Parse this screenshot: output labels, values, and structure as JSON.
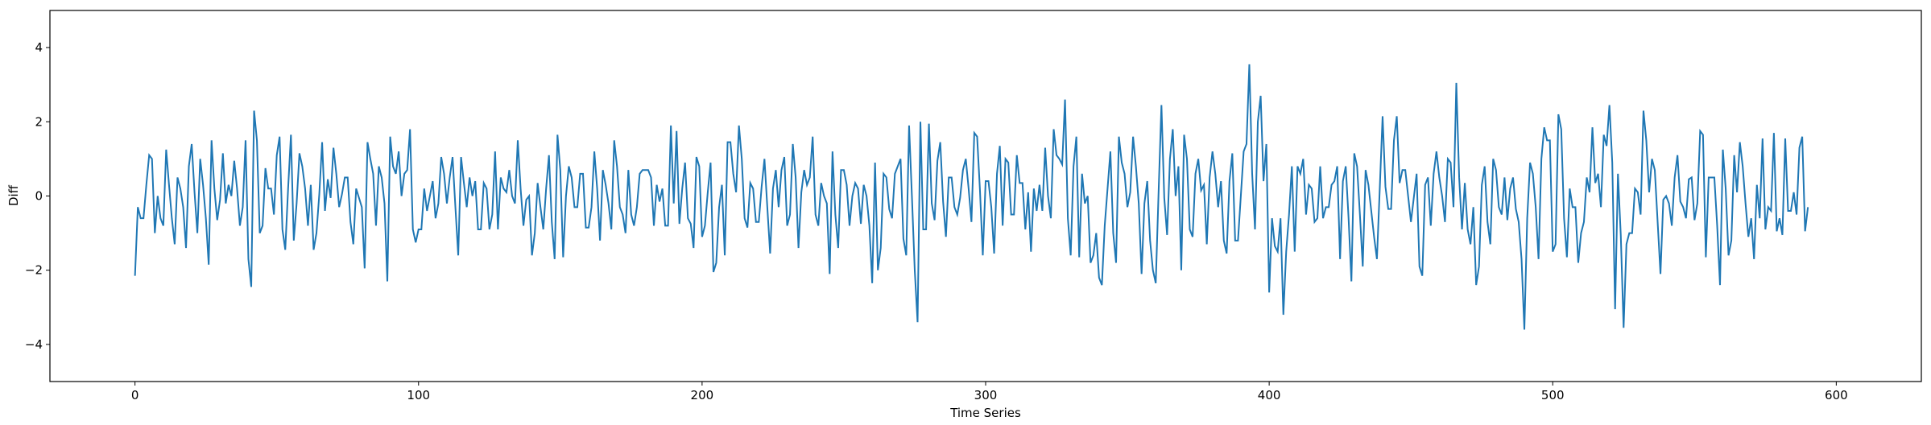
{
  "chart_data": {
    "type": "line",
    "title": "",
    "xlabel": "Time Series",
    "ylabel": "Diff",
    "xlim": [
      -30,
      630
    ],
    "ylim": [
      -5,
      5
    ],
    "xticks": [
      0,
      100,
      200,
      300,
      400,
      500,
      600
    ],
    "yticks": [
      -4,
      -2,
      0,
      2,
      4
    ],
    "grid": false,
    "legend": "none",
    "line_color": "#1f77b4",
    "series": [
      {
        "values": [
          -2.15,
          -0.3,
          -0.6,
          -0.6,
          0.3,
          1.1,
          1.0,
          -1.0,
          0.0,
          -0.6,
          -0.8,
          1.25,
          0.3,
          -0.6,
          -1.3,
          0.5,
          0.2,
          -0.3,
          -1.4,
          0.8,
          1.4,
          0.1,
          -1.0,
          1.0,
          0.3,
          -0.6,
          -1.85,
          1.5,
          0.2,
          -0.65,
          -0.1,
          1.15,
          -0.2,
          0.3,
          0.0,
          0.95,
          0.2,
          -0.8,
          -0.3,
          1.5,
          -1.7,
          -2.45,
          2.3,
          1.5,
          -1.0,
          -0.8,
          0.75,
          0.2,
          0.2,
          -0.5,
          1.1,
          1.6,
          -0.9,
          -1.45,
          0.2,
          1.65,
          -1.2,
          -0.2,
          1.15,
          0.8,
          0.2,
          -0.8,
          0.3,
          -1.45,
          -1.0,
          0.05,
          1.45,
          -0.4,
          0.45,
          -0.05,
          1.3,
          0.6,
          -0.3,
          0.05,
          0.5,
          0.5,
          -0.7,
          -1.3,
          0.2,
          -0.05,
          -0.3,
          -1.95,
          1.45,
          1.0,
          0.6,
          -0.8,
          0.8,
          0.5,
          -0.2,
          -2.3,
          1.6,
          0.8,
          0.6,
          1.2,
          0.0,
          0.6,
          0.7,
          1.8,
          -0.9,
          -1.25,
          -0.9,
          -0.9,
          0.2,
          -0.4,
          0.0,
          0.4,
          -0.6,
          -0.2,
          1.05,
          0.6,
          -0.2,
          0.5,
          1.05,
          -0.3,
          -1.6,
          1.05,
          0.35,
          -0.3,
          0.5,
          0.0,
          0.4,
          -0.9,
          -0.9,
          0.35,
          0.2,
          -0.9,
          -0.5,
          1.2,
          -0.9,
          0.5,
          0.2,
          0.1,
          0.7,
          0.0,
          -0.2,
          1.5,
          0.2,
          -0.8,
          -0.1,
          0.0,
          -1.6,
          -1.0,
          0.35,
          -0.3,
          -0.9,
          0.2,
          1.1,
          -0.7,
          -1.7,
          1.65,
          0.7,
          -1.65,
          0.0,
          0.8,
          0.5,
          -0.3,
          -0.3,
          0.6,
          0.6,
          -0.85,
          -0.85,
          -0.3,
          1.2,
          0.2,
          -1.2,
          0.7,
          0.3,
          -0.2,
          -0.9,
          1.5,
          0.8,
          -0.3,
          -0.5,
          -1.0,
          0.7,
          -0.5,
          -0.8,
          -0.3,
          0.6,
          0.7,
          0.7,
          0.7,
          0.5,
          -0.8,
          0.3,
          -0.15,
          0.2,
          -0.8,
          -0.8,
          1.9,
          -0.2,
          1.75,
          -0.75,
          0.2,
          0.9,
          -0.6,
          -0.75,
          -1.4,
          1.05,
          0.8,
          -1.1,
          -0.8,
          0.1,
          0.9,
          -2.05,
          -1.8,
          -0.3,
          0.3,
          -1.6,
          1.45,
          1.45,
          0.6,
          0.1,
          1.9,
          1.0,
          -0.6,
          -0.85,
          0.35,
          0.2,
          -0.7,
          -0.7,
          0.25,
          1.0,
          -0.3,
          -1.55,
          0.2,
          0.7,
          -0.3,
          0.7,
          1.05,
          -0.8,
          -0.5,
          1.4,
          0.5,
          -1.4,
          0.1,
          0.7,
          0.3,
          0.5,
          1.6,
          -0.5,
          -0.8,
          0.35,
          0.0,
          -0.2,
          -2.1,
          1.2,
          -0.5,
          -1.4,
          0.7,
          0.7,
          0.3,
          -0.8,
          0.0,
          0.35,
          0.2,
          -0.75,
          0.3,
          0.0,
          -0.8,
          -2.35,
          0.9,
          -2.0,
          -1.4,
          0.6,
          0.5,
          -0.35,
          -0.6,
          0.6,
          0.8,
          1.0,
          -1.15,
          -1.6,
          1.9,
          0.0,
          -2.0,
          -3.4,
          2.0,
          -0.9,
          -0.9,
          1.95,
          -0.2,
          -0.65,
          0.95,
          1.45,
          -0.15,
          -1.1,
          0.5,
          0.5,
          -0.3,
          -0.5,
          -0.05,
          0.7,
          1.0,
          0.2,
          -0.7,
          1.7,
          1.6,
          0.15,
          -1.6,
          0.4,
          0.4,
          -0.3,
          -1.55,
          0.6,
          1.35,
          -0.8,
          1.0,
          0.9,
          -0.5,
          -0.5,
          1.1,
          0.35,
          0.35,
          -0.9,
          0.1,
          -1.5,
          0.2,
          -0.4,
          0.3,
          -0.4,
          1.3,
          0.0,
          -0.6,
          1.8,
          1.1,
          1.0,
          0.85,
          2.6,
          -0.6,
          -1.6,
          0.8,
          1.6,
          -1.65,
          0.6,
          -0.2,
          0.0,
          -1.8,
          -1.6,
          -1.0,
          -2.2,
          -2.4,
          -0.8,
          0.2,
          1.2,
          -1.0,
          -1.8,
          1.6,
          0.9,
          0.6,
          -0.3,
          0.1,
          1.6,
          0.8,
          -0.2,
          -2.1,
          -0.2,
          0.4,
          -1.2,
          -2.0,
          -2.35,
          0.1,
          2.45,
          -0.05,
          -1.05,
          1.0,
          1.8,
          0.0,
          0.8,
          -2.0,
          1.65,
          1.0,
          -0.9,
          -1.1,
          0.6,
          1.0,
          0.15,
          0.3,
          -1.3,
          0.5,
          1.2,
          0.6,
          -0.3,
          0.4,
          -1.2,
          -1.55,
          0.4,
          1.15,
          -1.2,
          -1.2,
          0.0,
          1.2,
          1.4,
          3.55,
          0.6,
          -0.9,
          2.0,
          2.7,
          0.4,
          1.4,
          -2.6,
          -0.6,
          -1.35,
          -1.5,
          -0.6,
          -3.2,
          -1.5,
          -0.5,
          0.8,
          -1.5,
          0.8,
          0.6,
          1.0,
          -0.5,
          0.3,
          0.2,
          -0.7,
          -0.6,
          0.8,
          -0.6,
          -0.3,
          -0.3,
          0.3,
          0.4,
          0.8,
          -1.7,
          0.4,
          0.8,
          -0.6,
          -2.3,
          1.15,
          0.8,
          -0.5,
          -1.9,
          0.7,
          0.3,
          -0.4,
          -1.1,
          -1.7,
          0.2,
          2.15,
          0.25,
          -0.35,
          -0.35,
          1.5,
          2.15,
          0.35,
          0.7,
          0.7,
          0.0,
          -0.7,
          -0.05,
          0.6,
          -1.9,
          -2.15,
          0.3,
          0.5,
          -0.8,
          0.6,
          1.2,
          0.5,
          0.0,
          -0.7,
          1.0,
          0.9,
          -0.3,
          3.05,
          0.5,
          -0.9,
          0.35,
          -0.9,
          -1.3,
          -0.3,
          -2.4,
          -1.9,
          0.3,
          0.8,
          -0.7,
          -1.3,
          1.0,
          0.7,
          -0.3,
          -0.5,
          0.5,
          -0.65,
          0.2,
          0.5,
          -0.35,
          -0.7,
          -1.7,
          -3.6,
          -0.6,
          0.9,
          0.6,
          -0.3,
          -1.7,
          1.0,
          1.85,
          1.5,
          1.5,
          -1.5,
          -1.3,
          2.2,
          1.8,
          -0.6,
          -1.65,
          0.2,
          -0.3,
          -0.3,
          -1.8,
          -1.0,
          -0.7,
          0.5,
          0.1,
          1.85,
          0.35,
          0.6,
          -0.3,
          1.65,
          1.35,
          2.45,
          0.9,
          -3.05,
          0.6,
          -1.05,
          -3.55,
          -1.3,
          -1.0,
          -1.0,
          0.2,
          0.1,
          -0.5,
          2.3,
          1.5,
          0.1,
          1.0,
          0.7,
          -0.7,
          -2.1,
          -0.1,
          0.0,
          -0.2,
          -0.8,
          0.5,
          1.1,
          -0.15,
          -0.3,
          -0.6,
          0.45,
          0.5,
          -0.65,
          -0.2,
          1.75,
          1.65,
          -1.65,
          0.5,
          0.5,
          0.5,
          -0.8,
          -2.4,
          1.25,
          0.2,
          -1.6,
          -1.2,
          1.1,
          0.1,
          1.45,
          0.8,
          -0.2,
          -1.1,
          -0.6,
          -1.7,
          0.3,
          -0.6,
          1.55,
          -0.9,
          -0.3,
          -0.4,
          1.7,
          -0.95,
          -0.6,
          -1.05,
          1.55,
          -0.4,
          -0.4,
          0.1,
          -0.5,
          1.3,
          1.6,
          -0.95,
          -0.3
        ]
      }
    ]
  }
}
